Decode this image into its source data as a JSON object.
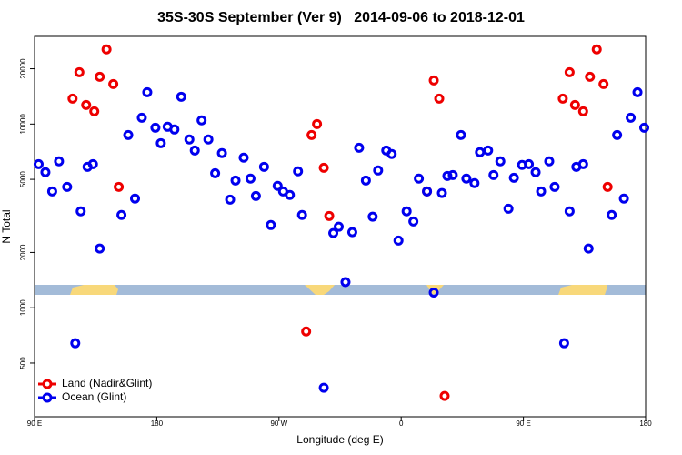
{
  "chart_data": {
    "type": "scatter",
    "title": "35S-30S September (Ver 9)   2014-09-06 to 2018-12-01",
    "x_label": "Longitude (deg E)",
    "y_label": "N Total",
    "xlim": [
      90,
      540
    ],
    "ylim": [
      255,
      30000
    ],
    "y_scale": "log",
    "xticks": [
      {
        "value": 90,
        "label": "90 E"
      },
      180,
      {
        "value": 270,
        "label": "90 W"
      },
      {
        "value": 360,
        "label": "0"
      },
      {
        "value": 450,
        "label": "90 E"
      },
      {
        "value": 540,
        "label": "180"
      }
    ],
    "yticks": [
      500,
      1000,
      2000,
      5000,
      10000,
      20000
    ],
    "legend": "bottom-left",
    "series": [
      {
        "name": "Land (Nadir&Glint)",
        "color": "#ee0000",
        "x": [
          118,
          123,
          128,
          134,
          138,
          143,
          148,
          152,
          290,
          294,
          298,
          303,
          307,
          379,
          384,
          388,
          392,
          479,
          484,
          488,
          494,
          499,
          504,
          509,
          512
        ],
        "values": [
          13760,
          19150,
          12700,
          11730,
          18080,
          25500,
          16510,
          4550,
          743,
          8720,
          10000,
          5780,
          3160,
          4300,
          17280,
          13760,
          331,
          13760,
          19150,
          12700,
          11730,
          18080,
          25500,
          16510,
          4550
        ]
      },
      {
        "name": "Ocean (Glint)",
        "color": "#0000ee",
        "x": [
          93,
          98,
          103,
          108,
          114,
          120,
          124,
          129,
          133,
          138,
          154,
          159,
          164,
          169,
          173,
          179,
          183,
          188,
          193,
          198,
          204,
          208,
          213,
          218,
          223,
          228,
          234,
          238,
          244,
          249,
          253,
          259,
          264,
          269,
          273,
          278,
          284,
          287,
          303,
          310,
          314,
          319,
          324,
          329,
          334,
          339,
          343,
          349,
          353,
          358,
          364,
          369,
          373,
          379,
          384,
          390,
          394,
          398,
          404,
          408,
          414,
          418,
          424,
          428,
          433,
          439,
          443,
          449,
          454,
          459,
          463,
          469,
          473,
          480,
          484,
          489,
          494,
          498,
          515,
          519,
          524,
          529,
          534,
          539
        ],
        "values": [
          6050,
          5470,
          4300,
          6270,
          4550,
          641,
          3350,
          5850,
          6050,
          2100,
          3200,
          8720,
          3930,
          10830,
          14900,
          9550,
          7870,
          9665,
          9340,
          14080,
          8240,
          7180,
          10470,
          8240,
          5400,
          6950,
          3880,
          4930,
          6560,
          5050,
          4060,
          5850,
          2820,
          4610,
          4300,
          4110,
          5530,
          3200,
          367,
          2550,
          2760,
          1380,
          2580,
          7430,
          4930,
          3130,
          5590,
          7180,
          6870,
          2320,
          3350,
          2950,
          5050,
          4300,
          1210,
          4210,
          5220,
          5280,
          8720,
          5050,
          4770,
          7030,
          7180,
          5280,
          6270,
          3460,
          5100,
          5990,
          6050,
          5470,
          4300,
          6270,
          4550,
          641,
          3350,
          5850,
          6050,
          2100,
          3200,
          8720,
          3930,
          10830,
          14900,
          9550
        ]
      }
    ]
  }
}
